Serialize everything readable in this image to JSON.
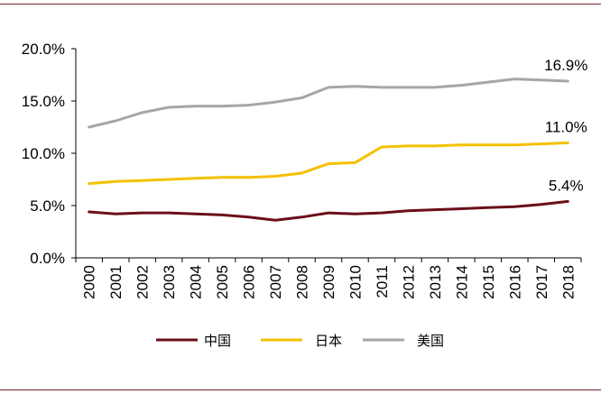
{
  "chart_data": {
    "type": "line",
    "x": [
      "2000",
      "2001",
      "2002",
      "2003",
      "2004",
      "2005",
      "2006",
      "2007",
      "2008",
      "2009",
      "2010",
      "2011",
      "2012",
      "2013",
      "2014",
      "2015",
      "2016",
      "2017",
      "2018"
    ],
    "ylim": [
      0,
      20
    ],
    "yticks": [
      "0.0%",
      "5.0%",
      "10.0%",
      "15.0%",
      "20.0%"
    ],
    "ytick_values": [
      0,
      5,
      10,
      15,
      20
    ],
    "grid": false,
    "legend_position": "bottom",
    "series": [
      {
        "name": "中国",
        "color": "#6b0f1a",
        "values": [
          4.4,
          4.2,
          4.3,
          4.3,
          4.2,
          4.1,
          3.9,
          3.6,
          3.9,
          4.3,
          4.2,
          4.3,
          4.5,
          4.6,
          4.7,
          4.8,
          4.9,
          5.1,
          5.4
        ],
        "end_label": "5.4%"
      },
      {
        "name": "日本",
        "color": "#f5c000",
        "values": [
          7.1,
          7.3,
          7.4,
          7.5,
          7.6,
          7.7,
          7.7,
          7.8,
          8.1,
          9.0,
          9.1,
          10.6,
          10.7,
          10.7,
          10.8,
          10.8,
          10.8,
          10.9,
          11.0
        ],
        "end_label": "11.0%"
      },
      {
        "name": "美国",
        "color": "#a6a6a6",
        "values": [
          12.5,
          13.1,
          13.9,
          14.4,
          14.5,
          14.5,
          14.6,
          14.9,
          15.3,
          16.3,
          16.4,
          16.3,
          16.3,
          16.3,
          16.5,
          16.8,
          17.1,
          17.0,
          16.9
        ],
        "end_label": "16.9%"
      }
    ]
  }
}
